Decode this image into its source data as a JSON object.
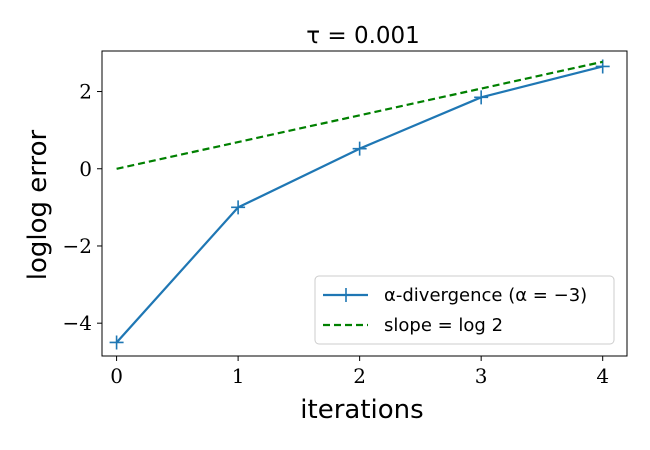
{
  "chart_data": {
    "type": "line",
    "title": "τ = 0.001",
    "xlabel": "iterations",
    "ylabel": "loglog error",
    "xlim": [
      -0.12,
      4.2
    ],
    "ylim": [
      -4.85,
      3.05
    ],
    "xticks": [
      0,
      1,
      2,
      3,
      4
    ],
    "xtick_labels": [
      "0",
      "1",
      "2",
      "3",
      "4"
    ],
    "yticks": [
      -4,
      -2,
      0,
      2
    ],
    "ytick_labels": [
      "−4",
      "−2",
      "0",
      "2"
    ],
    "grid": false,
    "legend_position": "lower-right",
    "series": [
      {
        "name": "α-divergence (α = −3)",
        "color": "#1f77b4",
        "line_style": "solid",
        "marker": "+",
        "x": [
          0,
          1,
          2,
          3,
          4
        ],
        "y": [
          -4.5,
          -1.0,
          0.52,
          1.85,
          2.65
        ]
      },
      {
        "name": "slope = log 2",
        "color": "#008000",
        "line_style": "dashed",
        "marker": "none",
        "x": [
          0,
          4
        ],
        "y": [
          0.0,
          2.77
        ]
      }
    ]
  }
}
